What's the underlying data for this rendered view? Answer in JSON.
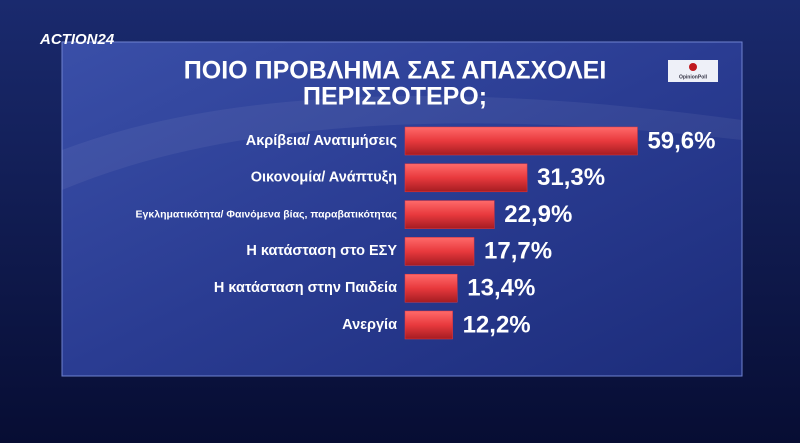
{
  "channel_logo": "ACTION24",
  "source": "OpinionPoll",
  "chart_data": {
    "type": "bar",
    "orientation": "horizontal",
    "title": [
      "ΠΟΙΟ  ΠΡΟΒΛΗΜΑ  ΣΑΣ  ΑΠΑΣΧΟΛΕΙ",
      "ΠΕΡΙΣΣΟΤΕΡΟ;"
    ],
    "categories": [
      "Ακρίβεια/ Ανατιμήσεις",
      "Οικονομία/ Ανάπτυξη",
      "Εγκληματικότητα/ Φαινόμενα βίας, παραβατικότητας",
      "Η κατάσταση στο ΕΣΥ",
      "Η κατάσταση στην Παιδεία",
      "Ανεργία"
    ],
    "values": [
      59.6,
      31.3,
      22.9,
      17.7,
      13.4,
      12.2
    ],
    "value_labels": [
      "59,6%",
      "31,3%",
      "22,9%",
      "17,7%",
      "13,4%",
      "12,2%"
    ],
    "color": "#e8393d"
  }
}
